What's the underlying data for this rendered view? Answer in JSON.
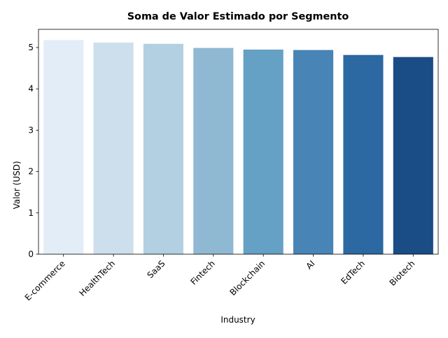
{
  "chart_data": {
    "type": "bar",
    "title": "Soma de Valor Estimado por Segmento",
    "xlabel": "Industry",
    "ylabel": "Valor (USD)",
    "categories": [
      "E-commerce",
      "HealthTech",
      "SaaS",
      "Fintech",
      "Blockchain",
      "AI",
      "EdTech",
      "Biotech"
    ],
    "values": [
      5.18,
      5.12,
      5.09,
      4.99,
      4.95,
      4.94,
      4.82,
      4.77
    ],
    "colors": [
      "#e3edf7",
      "#cddfed",
      "#b3cfe2",
      "#8fb8d3",
      "#65a0c5",
      "#4884b5",
      "#2c68a1",
      "#1a4c85"
    ],
    "ylim": [
      0,
      5.44
    ],
    "yticks": [
      0,
      1,
      2,
      3,
      4,
      5
    ],
    "ytick_labels": [
      "0",
      "1",
      "2",
      "3",
      "4",
      "5"
    ],
    "grid": false,
    "legend": "none"
  }
}
